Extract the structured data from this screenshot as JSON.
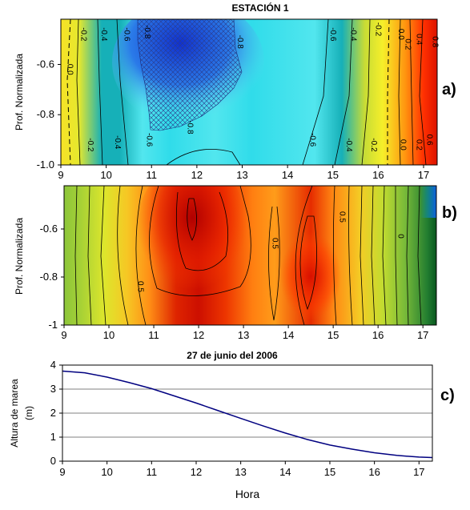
{
  "figure": {
    "title": "ESTACIÓN 1",
    "panel_labels": [
      "a)",
      "b)",
      "c)"
    ]
  },
  "chart_data": [
    {
      "type": "heatmap",
      "panel": "a)",
      "ylabel": "Prof. Normalizada",
      "x_ticks": [
        9,
        10,
        11,
        12,
        13,
        14,
        15,
        16,
        17
      ],
      "y_ticks": [
        -0.6,
        -0.8,
        -1.0
      ],
      "y_tick_labels": [
        "-0.6",
        "-0.8",
        "-1.0"
      ],
      "xlim": [
        9,
        17.3
      ],
      "ylim": [
        -1.0,
        -0.42
      ],
      "colormap": [
        "#006a2b",
        "#3ea040",
        "#b0d23a",
        "#f6ef2a",
        "#ff9a10",
        "#ff2a00",
        "#c00000"
      ],
      "columns": [
        {
          "x": 9.0,
          "v": 0.05
        },
        {
          "x": 9.4,
          "v": -0.08
        },
        {
          "x": 9.9,
          "v": -0.32
        },
        {
          "x": 10.3,
          "v": -0.45
        },
        {
          "x": 10.8,
          "v": -0.62
        },
        {
          "x": 11.4,
          "v": -0.86
        },
        {
          "x": 12.4,
          "v": -0.78
        },
        {
          "x": 13.2,
          "v": -0.82
        },
        {
          "x": 14.6,
          "v": -0.62
        },
        {
          "x": 15.2,
          "v": -0.45
        },
        {
          "x": 15.7,
          "v": -0.22
        },
        {
          "x": 16.1,
          "v": 0.0
        },
        {
          "x": 16.6,
          "v": 0.35
        },
        {
          "x": 17.0,
          "v": 0.65
        },
        {
          "x": 17.3,
          "v": 0.85
        }
      ],
      "contours": [
        {
          "label": "0.0",
          "x": 9.15,
          "y": -0.62
        },
        {
          "label": "-0.2",
          "x": 9.45,
          "y": -0.48
        },
        {
          "label": "-0.2",
          "x": 9.6,
          "y": -0.92
        },
        {
          "label": "-0.4",
          "x": 9.9,
          "y": -0.48
        },
        {
          "label": "-0.4",
          "x": 10.2,
          "y": -0.91
        },
        {
          "label": "-0.6",
          "x": 10.4,
          "y": -0.48
        },
        {
          "label": "-0.6",
          "x": 10.9,
          "y": -0.9
        },
        {
          "label": "-0.8",
          "x": 10.85,
          "y": -0.47
        },
        {
          "label": "-0.8",
          "x": 11.8,
          "y": -0.85
        },
        {
          "label": "-0.8",
          "x": 12.9,
          "y": -0.51
        },
        {
          "label": "-0.6",
          "x": 14.95,
          "y": -0.48
        },
        {
          "label": "-0.6",
          "x": 14.5,
          "y": -0.9
        },
        {
          "label": "-0.4",
          "x": 15.4,
          "y": -0.48
        },
        {
          "label": "-0.4",
          "x": 15.3,
          "y": -0.92
        },
        {
          "label": "-0.2",
          "x": 15.95,
          "y": -0.46
        },
        {
          "label": "-0.2",
          "x": 15.85,
          "y": -0.92
        },
        {
          "label": "0.0",
          "x": 16.45,
          "y": -0.48
        },
        {
          "label": "0.0",
          "x": 16.5,
          "y": -0.92
        },
        {
          "label": "0.2",
          "x": 16.6,
          "y": -0.52
        },
        {
          "label": "0.2",
          "x": 16.85,
          "y": -0.92
        },
        {
          "label": "0.4",
          "x": 16.85,
          "y": -0.5
        },
        {
          "label": "0.6",
          "x": 17.08,
          "y": -0.9
        },
        {
          "label": "0.8",
          "x": 17.2,
          "y": -0.51
        }
      ]
    },
    {
      "type": "heatmap",
      "panel": "b)",
      "ylabel": "Prof. Normalizada",
      "x_ticks": [
        9,
        10,
        11,
        12,
        13,
        14,
        15,
        16,
        17
      ],
      "y_ticks": [
        -0.6,
        -0.8,
        -1
      ],
      "y_tick_labels": [
        "-0.6",
        "-0.8",
        "-1"
      ],
      "xlim": [
        9,
        17.3
      ],
      "ylim": [
        -1.0,
        -0.42
      ],
      "colormap": [
        "#004a1a",
        "#2a8a35",
        "#8cc63a",
        "#e8ea2a",
        "#ffb020",
        "#ff4a00",
        "#c00000"
      ],
      "columns": [
        {
          "x": 9.0,
          "v": 0.0
        },
        {
          "x": 9.4,
          "v": 0.08
        },
        {
          "x": 9.9,
          "v": 0.22
        },
        {
          "x": 10.4,
          "v": 0.4
        },
        {
          "x": 10.9,
          "v": 0.58
        },
        {
          "x": 11.5,
          "v": 0.88
        },
        {
          "x": 12.0,
          "v": 0.95
        },
        {
          "x": 12.6,
          "v": 0.82
        },
        {
          "x": 13.2,
          "v": 0.62
        },
        {
          "x": 13.7,
          "v": 0.55
        },
        {
          "x": 14.5,
          "v": 0.85
        },
        {
          "x": 15.0,
          "v": 0.6
        },
        {
          "x": 15.6,
          "v": 0.38
        },
        {
          "x": 16.1,
          "v": 0.15
        },
        {
          "x": 16.6,
          "v": -0.05
        },
        {
          "x": 17.1,
          "v": -0.3
        },
        {
          "x": 17.3,
          "v": -0.45
        }
      ],
      "contours": [
        {
          "label": "0.5",
          "x": 10.65,
          "y": -0.84
        },
        {
          "label": "0.5",
          "x": 13.65,
          "y": -0.66
        },
        {
          "label": "0.5",
          "x": 15.15,
          "y": -0.55
        },
        {
          "label": "0",
          "x": 16.45,
          "y": -0.63
        }
      ]
    },
    {
      "type": "line",
      "panel": "c)",
      "title": "27 de junio del 2006",
      "xlabel": "Hora",
      "ylabel": "Altura de marea (m)",
      "ylabel_lines": [
        "Altura de marea",
        "(m)"
      ],
      "xlim": [
        9,
        17.3
      ],
      "ylim": [
        0,
        4
      ],
      "x_ticks": [
        9,
        10,
        11,
        12,
        13,
        14,
        15,
        16,
        17
      ],
      "y_ticks": [
        0,
        1,
        2,
        3,
        4
      ],
      "grid": true,
      "series": [
        {
          "color": "#000080",
          "x": [
            9,
            9.5,
            10,
            10.5,
            11,
            11.5,
            12,
            12.5,
            13,
            13.5,
            14,
            14.5,
            15,
            15.5,
            16,
            16.5,
            17,
            17.3
          ],
          "y": [
            3.75,
            3.68,
            3.5,
            3.27,
            3.02,
            2.72,
            2.42,
            2.1,
            1.78,
            1.47,
            1.17,
            0.9,
            0.67,
            0.5,
            0.35,
            0.24,
            0.17,
            0.15
          ]
        }
      ]
    }
  ]
}
